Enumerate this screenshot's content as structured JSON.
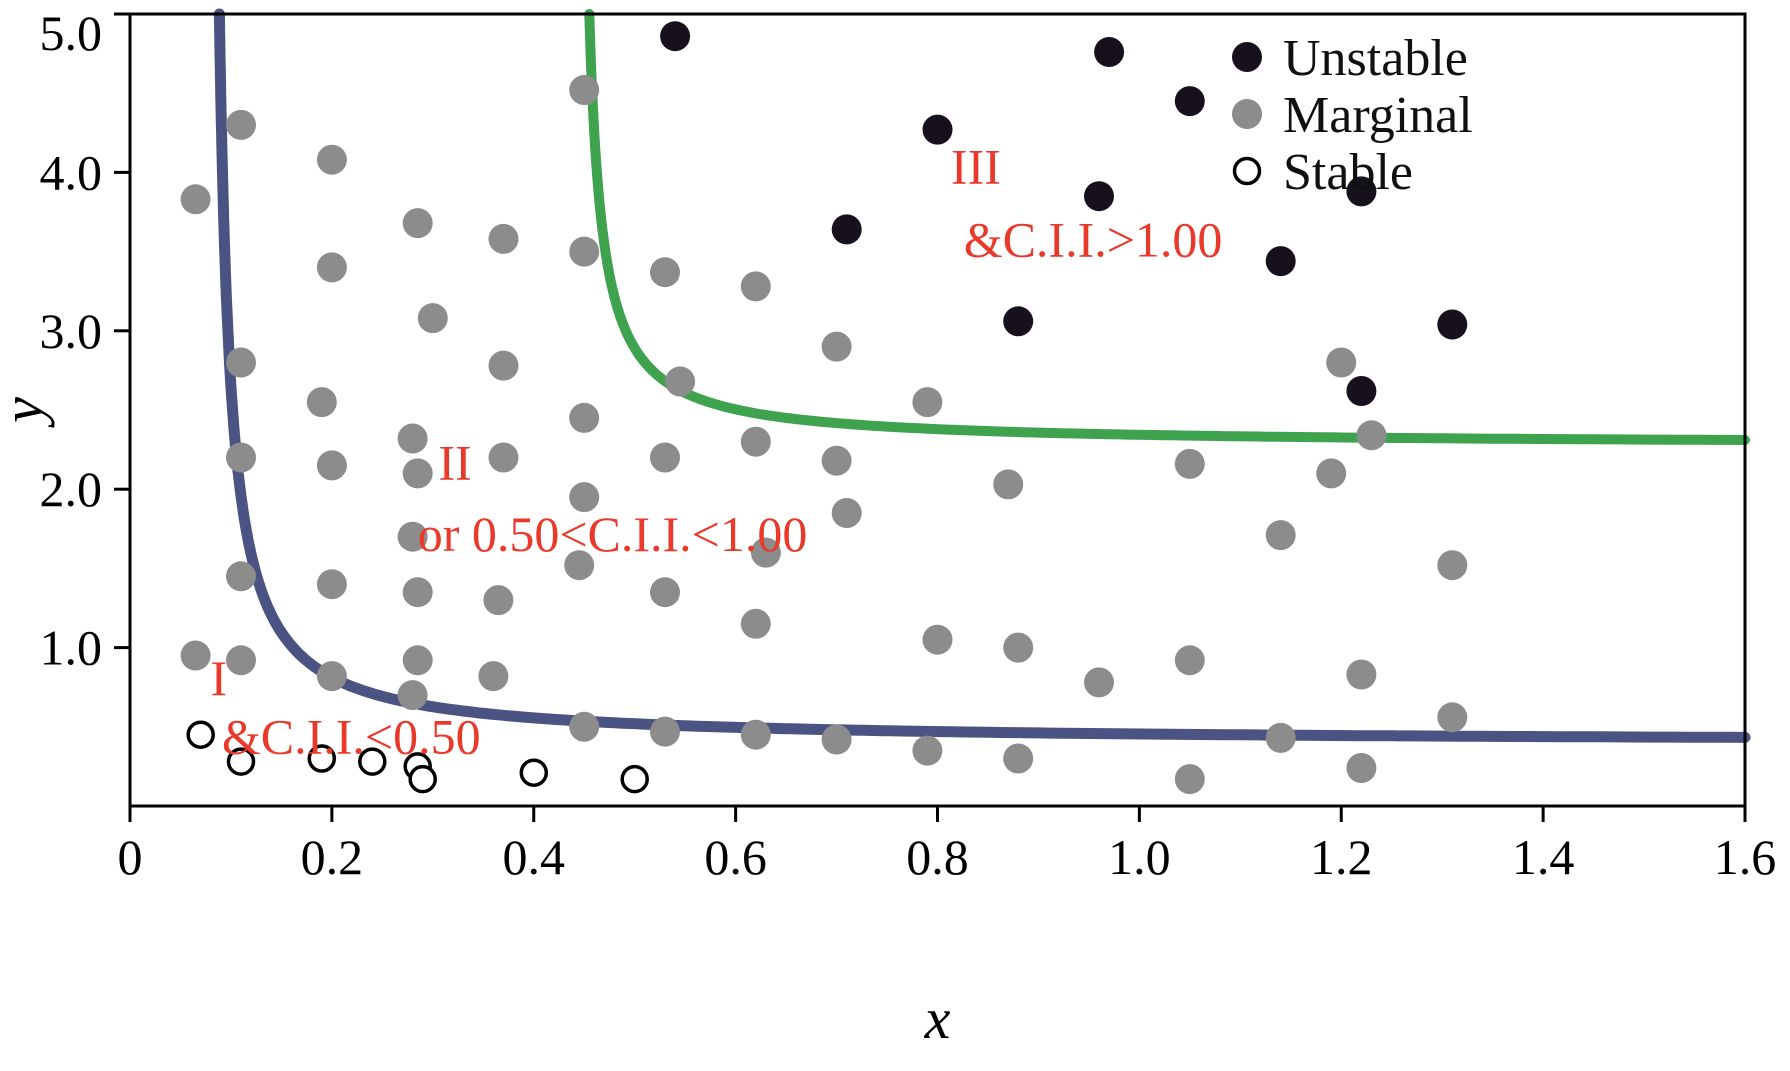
{
  "chart_data": {
    "type": "scatter",
    "title": "",
    "xlabel": "x",
    "ylabel": "y",
    "xlim": [
      0,
      1.6
    ],
    "ylim": [
      0,
      5.0
    ],
    "grid": false,
    "legend_position": "top-right-inside",
    "annotation_color": "#e8392b",
    "x_ticks": [
      {
        "v": 0.0,
        "label": "0"
      },
      {
        "v": 0.2,
        "label": "0.2"
      },
      {
        "v": 0.4,
        "label": "0.4"
      },
      {
        "v": 0.6,
        "label": "0.6"
      },
      {
        "v": 0.8,
        "label": "0.8"
      },
      {
        "v": 1.0,
        "label": "1.0"
      },
      {
        "v": 1.2,
        "label": "1.2"
      },
      {
        "v": 1.4,
        "label": "1.4"
      },
      {
        "v": 1.6,
        "label": "1.6"
      }
    ],
    "y_ticks": [
      {
        "v": 1.0,
        "label": "1.0"
      },
      {
        "v": 2.0,
        "label": "2.0"
      },
      {
        "v": 3.0,
        "label": "3.0"
      },
      {
        "v": 4.0,
        "label": "4.0"
      },
      {
        "v": 5.0,
        "label": "5.0"
      }
    ],
    "series": [
      {
        "name": "Unstable",
        "marker": "filled",
        "fill": "#17101d",
        "points": [
          [
            0.54,
            4.86
          ],
          [
            0.97,
            4.76
          ],
          [
            1.05,
            4.45
          ],
          [
            0.8,
            4.27
          ],
          [
            0.96,
            3.85
          ],
          [
            1.22,
            3.88
          ],
          [
            0.71,
            3.64
          ],
          [
            1.14,
            3.44
          ],
          [
            0.88,
            3.06
          ],
          [
            1.31,
            3.04
          ],
          [
            1.22,
            2.62
          ]
        ]
      },
      {
        "name": "Marginal",
        "marker": "filled",
        "fill": "#8c8c8c",
        "points": [
          [
            0.065,
            3.83
          ],
          [
            0.11,
            4.3
          ],
          [
            0.11,
            2.8
          ],
          [
            0.11,
            2.2
          ],
          [
            0.11,
            1.45
          ],
          [
            0.065,
            0.95
          ],
          [
            0.11,
            0.92
          ],
          [
            0.2,
            4.08
          ],
          [
            0.2,
            3.4
          ],
          [
            0.19,
            2.55
          ],
          [
            0.2,
            2.15
          ],
          [
            0.2,
            1.4
          ],
          [
            0.2,
            0.82
          ],
          [
            0.285,
            3.68
          ],
          [
            0.3,
            3.08
          ],
          [
            0.28,
            2.32
          ],
          [
            0.285,
            2.1
          ],
          [
            0.28,
            1.7
          ],
          [
            0.285,
            1.35
          ],
          [
            0.285,
            0.92
          ],
          [
            0.28,
            0.7
          ],
          [
            0.37,
            3.58
          ],
          [
            0.37,
            2.78
          ],
          [
            0.37,
            2.2
          ],
          [
            0.365,
            1.3
          ],
          [
            0.36,
            0.82
          ],
          [
            0.45,
            4.52
          ],
          [
            0.45,
            3.5
          ],
          [
            0.45,
            2.45
          ],
          [
            0.45,
            1.95
          ],
          [
            0.445,
            1.52
          ],
          [
            0.45,
            0.5
          ],
          [
            0.53,
            3.37
          ],
          [
            0.545,
            2.68
          ],
          [
            0.53,
            2.2
          ],
          [
            0.53,
            1.35
          ],
          [
            0.53,
            0.47
          ],
          [
            0.62,
            3.28
          ],
          [
            0.62,
            2.3
          ],
          [
            0.63,
            1.6
          ],
          [
            0.62,
            1.15
          ],
          [
            0.62,
            0.45
          ],
          [
            0.7,
            2.9
          ],
          [
            0.7,
            2.18
          ],
          [
            0.71,
            1.85
          ],
          [
            0.7,
            0.42
          ],
          [
            0.79,
            2.55
          ],
          [
            0.8,
            1.05
          ],
          [
            0.79,
            0.35
          ],
          [
            0.87,
            2.03
          ],
          [
            0.88,
            1.0
          ],
          [
            0.88,
            0.3
          ],
          [
            0.96,
            0.78
          ],
          [
            1.05,
            2.16
          ],
          [
            1.05,
            0.92
          ],
          [
            1.05,
            0.17
          ],
          [
            1.14,
            1.71
          ],
          [
            1.14,
            0.43
          ],
          [
            1.2,
            2.8
          ],
          [
            1.19,
            2.1
          ],
          [
            1.23,
            2.34
          ],
          [
            1.22,
            0.83
          ],
          [
            1.22,
            0.24
          ],
          [
            1.31,
            1.52
          ],
          [
            1.31,
            0.56
          ]
        ]
      },
      {
        "name": "Stable",
        "marker": "open",
        "fill": "#ffffff",
        "stroke": "#000000",
        "points": [
          [
            0.07,
            0.45
          ],
          [
            0.11,
            0.28
          ],
          [
            0.19,
            0.3
          ],
          [
            0.24,
            0.28
          ],
          [
            0.285,
            0.25
          ],
          [
            0.29,
            0.17
          ],
          [
            0.4,
            0.21
          ],
          [
            0.5,
            0.17
          ]
        ]
      }
    ],
    "curves": [
      {
        "name": "lower-boundary",
        "color": "#4a5382",
        "y_asymptote": 0.4,
        "x_offset": 0.0776,
        "coef": 0.0504
      },
      {
        "name": "upper-boundary",
        "color": "#3ea24e",
        "y_asymptote": 2.28,
        "x_offset": 0.442,
        "coef": 0.0354
      }
    ],
    "annotations": [
      {
        "text": "I",
        "x": 0.088,
        "y": 0.7,
        "anchor": "middle"
      },
      {
        "text": "&C.I.I.<0.50",
        "x": 0.091,
        "y": 0.33,
        "anchor": "start"
      },
      {
        "text": "II",
        "x": 0.322,
        "y": 2.06,
        "anchor": "middle"
      },
      {
        "text": "or 0.50<C.I.I.<1.00",
        "x": 0.285,
        "y": 1.61,
        "anchor": "start"
      },
      {
        "text": "III",
        "x": 0.838,
        "y": 3.93,
        "anchor": "middle"
      },
      {
        "text": "&C.I.I.>1.00",
        "x": 0.826,
        "y": 3.47,
        "anchor": "start"
      }
    ]
  }
}
